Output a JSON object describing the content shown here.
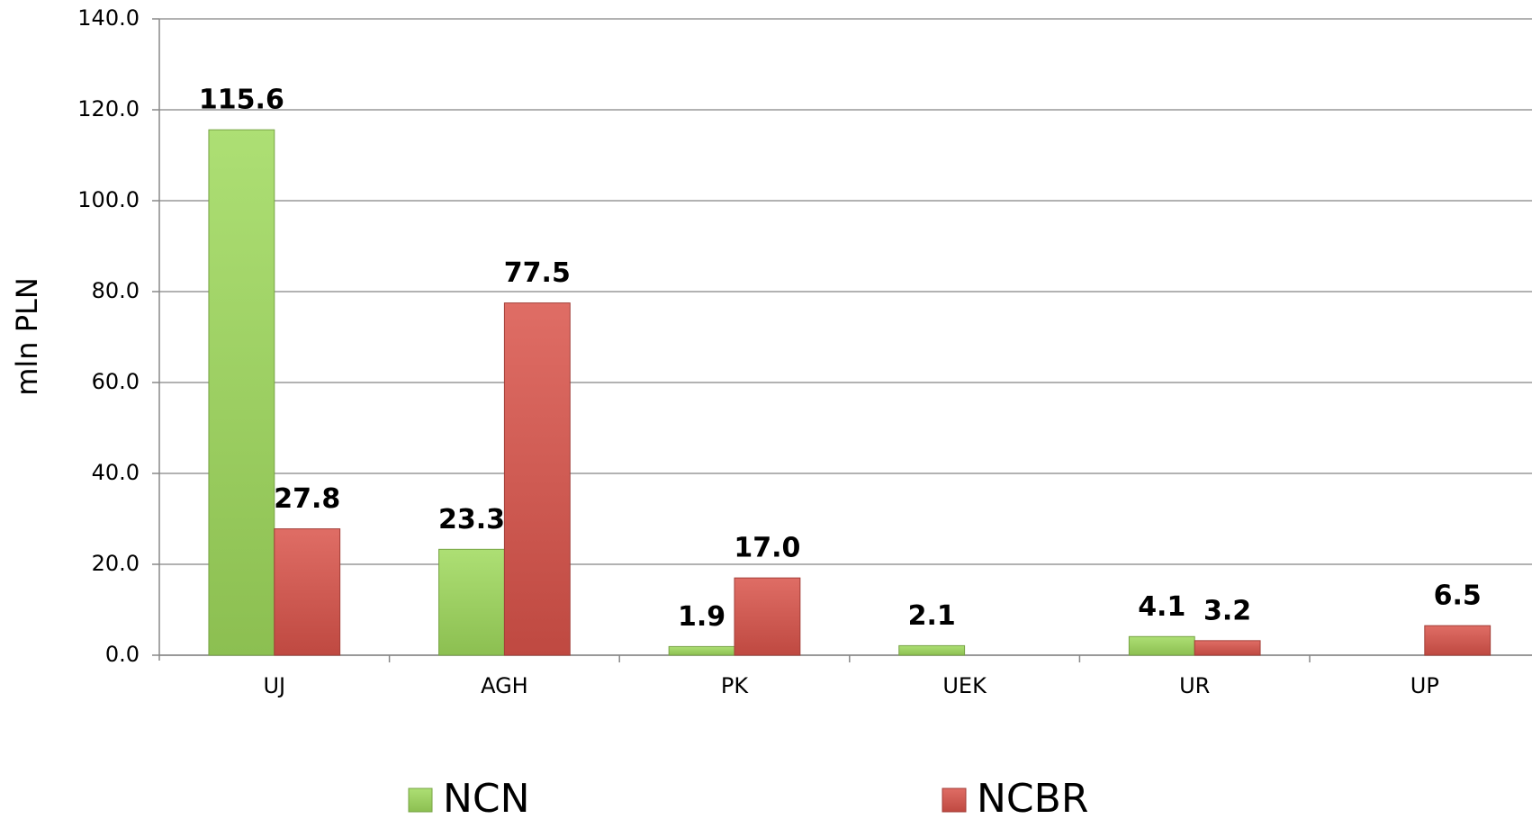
{
  "chart_data": {
    "type": "bar",
    "y_label": "mln PLN",
    "categories": [
      "UJ",
      "AGH",
      "PK",
      "UEK",
      "UR",
      "UP"
    ],
    "series": [
      {
        "name": "NCN",
        "color": "#9fd95c",
        "values": [
          115.6,
          23.3,
          1.9,
          2.1,
          4.1,
          null
        ],
        "value_labels": [
          "115.6",
          "23.3",
          "1.9",
          "2.1",
          "4.1",
          null
        ]
      },
      {
        "name": "NCBR",
        "color": "#d9534a",
        "values": [
          27.8,
          77.5,
          17.0,
          null,
          3.2,
          6.5
        ],
        "value_labels": [
          "27.8",
          "77.5",
          "17.0",
          null,
          "3.2",
          "6.5"
        ]
      }
    ],
    "ylim": [
      0,
      140
    ],
    "yticks": [
      {
        "value": 0,
        "label": "0.0"
      },
      {
        "value": 20,
        "label": "20.0"
      },
      {
        "value": 40,
        "label": "40.0"
      },
      {
        "value": 60,
        "label": "60.0"
      },
      {
        "value": 80,
        "label": "80.0"
      },
      {
        "value": 100,
        "label": "100.0"
      },
      {
        "value": 120,
        "label": "120.0"
      },
      {
        "value": 140,
        "label": "140.0"
      }
    ],
    "grid": true,
    "legend": "bottom"
  }
}
